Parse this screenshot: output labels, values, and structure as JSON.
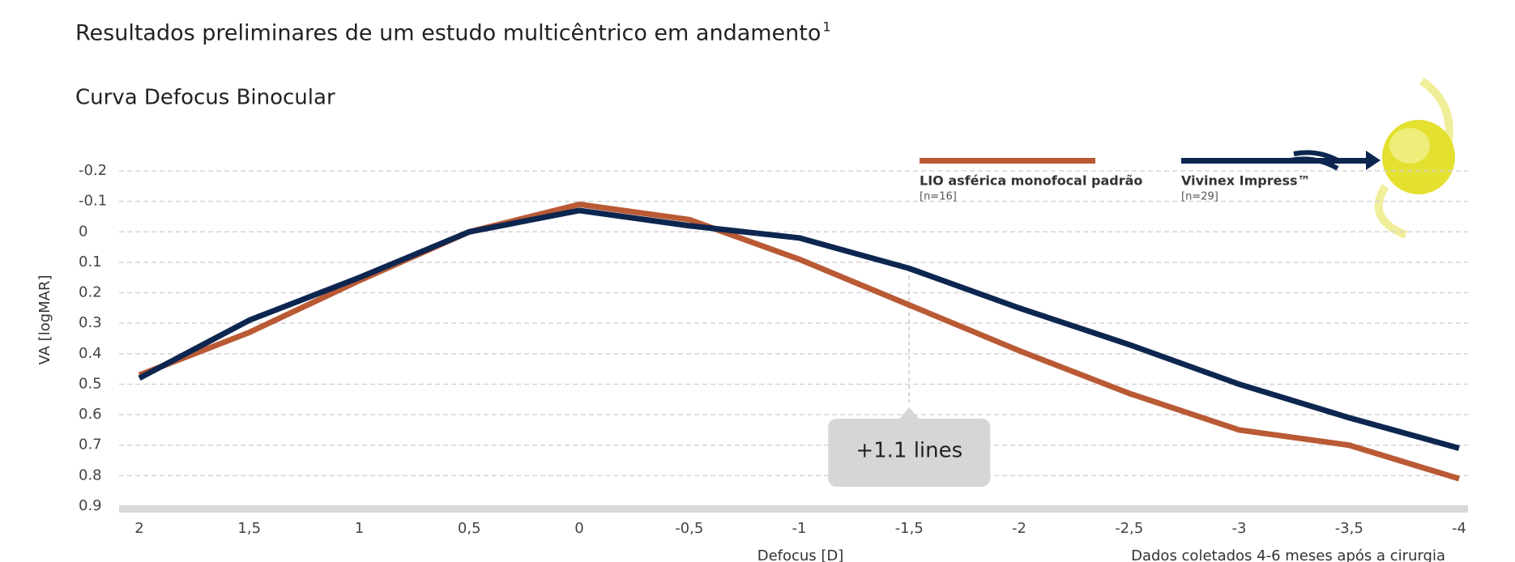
{
  "chart_data": {
    "type": "line",
    "title": "Resultados preliminares de um estudo multicêntrico em andamento",
    "title_note": "1",
    "subtitle": "Curva Defocus Binocular",
    "y_label": "VA [logMAR]",
    "x_label": "Defocus [D]",
    "footnote": "Dados coletados 4-6 meses após a cirurgia",
    "x": [
      2,
      1.5,
      1,
      0.5,
      0,
      -0.5,
      -1,
      -1.5,
      -2,
      -2.5,
      -3,
      -3.5,
      -4
    ],
    "series": [
      {
        "name": "LIO asférica monofocal padrão",
        "sample": "[n=16]",
        "color": "#b95a35",
        "values": [
          0.47,
          0.33,
          0.16,
          0.0,
          -0.09,
          -0.04,
          0.09,
          0.24,
          0.39,
          0.53,
          0.65,
          0.7,
          0.81
        ]
      },
      {
        "name": "Vivinex Impress™",
        "sample": "[n=29]",
        "color": "#0d2650",
        "values": [
          0.48,
          0.29,
          0.15,
          0.0,
          -0.07,
          -0.02,
          0.02,
          0.12,
          0.25,
          0.37,
          0.5,
          0.61,
          0.71
        ]
      }
    ],
    "annotation": {
      "text": "+1.1 lines",
      "x": -1.5
    },
    "xlim": [
      2,
      -4
    ],
    "xticks": [
      {
        "value": 2,
        "label": "2"
      },
      {
        "value": 1.5,
        "label": "1,5"
      },
      {
        "value": 1,
        "label": "1"
      },
      {
        "value": 0.5,
        "label": "0,5"
      },
      {
        "value": 0,
        "label": "0"
      },
      {
        "value": -0.5,
        "label": "-0,5"
      },
      {
        "value": -1,
        "label": "-1"
      },
      {
        "value": -1.5,
        "label": "-1,5"
      },
      {
        "value": -2,
        "label": "-2"
      },
      {
        "value": -2.5,
        "label": "-2,5"
      },
      {
        "value": -3,
        "label": "-3"
      },
      {
        "value": -3.5,
        "label": "-3,5"
      },
      {
        "value": -4,
        "label": "-4"
      }
    ],
    "ylim": [
      -0.2,
      0.9
    ],
    "yticks": [
      -0.2,
      -0.1,
      0,
      0.1,
      0.2,
      0.3,
      0.4,
      0.5,
      0.6,
      0.7,
      0.8,
      0.9
    ],
    "y_inverted": true,
    "grid": true
  }
}
